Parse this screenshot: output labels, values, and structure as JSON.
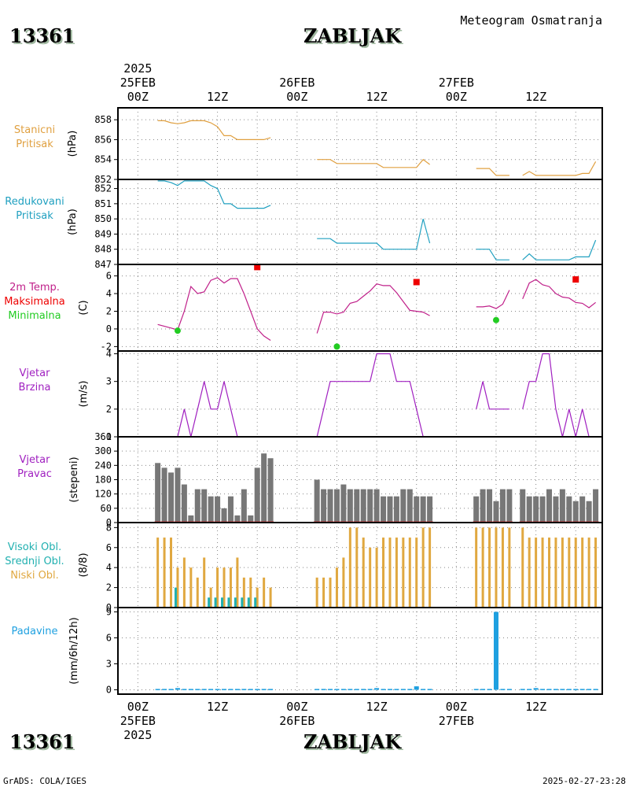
{
  "header": {
    "station_id": "13361",
    "station_name": "ZABLJAK",
    "title": "Meteogram Osmatranja"
  },
  "footer": {
    "credit": "GrADS: COLA/IGES",
    "timestamp": "2025-02-27-23:28"
  },
  "colors": {
    "pressure_station": "#e0a040",
    "pressure_reduced": "#20a0c0",
    "temperature": "#c0208a",
    "tmax": "#ee0000",
    "tmin": "#22cc22",
    "wind": "#a020c0",
    "wind_dir_bar": "#777777",
    "wind_dir_base": "#cc3333",
    "cloud_low": "#e0a840",
    "cloud_mid": "#20b0b0",
    "cloud_high": "#20b0b0",
    "precip": "#1ea0e0"
  },
  "time_axis": {
    "year": "2025",
    "dates": [
      "25FEB",
      "26FEB",
      "27FEB"
    ],
    "hour_labels": [
      "00Z",
      "12Z",
      "00Z",
      "12Z",
      "00Z",
      "12Z"
    ],
    "top_labels": [
      {
        "hour": 0,
        "hour_label": "00Z",
        "date": "25FEB",
        "year": "2025"
      },
      {
        "hour": 12,
        "hour_label": "12Z"
      },
      {
        "hour": 24,
        "hour_label": "00Z",
        "date": "26FEB"
      },
      {
        "hour": 36,
        "hour_label": "12Z"
      },
      {
        "hour": 48,
        "hour_label": "00Z",
        "date": "27FEB"
      },
      {
        "hour": 60,
        "hour_label": "12Z"
      }
    ],
    "bottom_labels": [
      {
        "hour": 0,
        "hour_label": "00Z",
        "date": "25FEB",
        "year": "2025"
      },
      {
        "hour": 12,
        "hour_label": "12Z"
      },
      {
        "hour": 24,
        "hour_label": "00Z",
        "date": "26FEB"
      },
      {
        "hour": 36,
        "hour_label": "12Z"
      },
      {
        "hour": 48,
        "hour_label": "00Z",
        "date": "27FEB"
      },
      {
        "hour": 60,
        "hour_label": "12Z"
      }
    ],
    "range_hours": [
      -3,
      70
    ]
  },
  "chart_data": [
    {
      "id": "station_pressure",
      "type": "line",
      "labels": [
        {
          "text": "Stanicni",
          "color": "#e0a040"
        },
        {
          "text": "Pritisak",
          "color": "#e0a040"
        }
      ],
      "ylabel": "(hPa)",
      "ylim": [
        852,
        859.2
      ],
      "yticks": [
        852,
        854,
        856,
        858
      ],
      "series": [
        {
          "x": [
            3,
            4,
            5,
            6,
            7,
            8,
            9,
            10,
            11,
            12,
            13,
            14,
            15,
            16,
            17,
            18,
            19,
            20
          ],
          "y": [
            857.9,
            857.9,
            857.7,
            857.6,
            857.7,
            857.9,
            857.9,
            857.9,
            857.7,
            857.3,
            856.4,
            856.4,
            856.0,
            856.0,
            856.0,
            856.0,
            856.0,
            856.2
          ]
        },
        {
          "x": [
            27,
            28,
            29,
            30,
            31,
            32,
            33,
            34,
            35,
            36,
            37,
            38,
            39,
            40,
            41,
            42,
            43,
            44
          ],
          "y": [
            854.0,
            854.0,
            854.0,
            853.6,
            853.6,
            853.6,
            853.6,
            853.6,
            853.6,
            853.6,
            853.2,
            853.2,
            853.2,
            853.2,
            853.2,
            853.2,
            854.0,
            853.5
          ]
        },
        {
          "x": [
            51,
            52,
            53,
            54,
            55,
            56
          ],
          "y": [
            853.1,
            853.1,
            853.1,
            852.4,
            852.4,
            852.4
          ]
        },
        {
          "x": [
            58,
            59,
            60,
            61,
            62,
            63,
            64,
            65,
            66,
            67,
            68,
            69
          ],
          "y": [
            852.4,
            852.8,
            852.4,
            852.4,
            852.4,
            852.4,
            852.4,
            852.4,
            852.4,
            852.6,
            852.6,
            853.8
          ]
        }
      ]
    },
    {
      "id": "reduced_pressure",
      "type": "line",
      "labels": [
        {
          "text": "Redukovani",
          "color": "#20a0c0"
        },
        {
          "text": "Pritisak",
          "color": "#20a0c0"
        }
      ],
      "ylabel": "(hPa)",
      "ylim": [
        847,
        852.6
      ],
      "yticks": [
        847,
        848,
        849,
        850,
        851,
        852
      ],
      "series": [
        {
          "x": [
            3,
            4,
            5,
            6,
            7,
            8,
            9,
            10,
            11,
            12,
            13,
            14,
            15,
            16,
            17,
            18,
            19,
            20
          ],
          "y": [
            852.5,
            852.5,
            852.4,
            852.2,
            852.5,
            852.5,
            852.5,
            852.5,
            852.2,
            852.0,
            851.0,
            851.0,
            850.7,
            850.7,
            850.7,
            850.7,
            850.7,
            850.9
          ]
        },
        {
          "x": [
            27,
            28,
            29,
            30,
            31,
            32,
            33,
            34,
            35,
            36,
            37,
            38,
            39,
            40,
            41,
            42,
            43,
            44
          ],
          "y": [
            848.7,
            848.7,
            848.7,
            848.4,
            848.4,
            848.4,
            848.4,
            848.4,
            848.4,
            848.4,
            848.0,
            848.0,
            848.0,
            848.0,
            848.0,
            848.0,
            850.0,
            848.4
          ]
        },
        {
          "x": [
            51,
            52,
            53,
            54,
            55,
            56
          ],
          "y": [
            848.0,
            848.0,
            848.0,
            847.3,
            847.3,
            847.3
          ]
        },
        {
          "x": [
            58,
            59,
            60,
            61,
            62,
            63,
            64,
            65,
            66,
            67,
            68,
            69
          ],
          "y": [
            847.3,
            847.7,
            847.3,
            847.3,
            847.3,
            847.3,
            847.3,
            847.3,
            847.5,
            847.5,
            847.5,
            848.6
          ]
        }
      ]
    },
    {
      "id": "temperature",
      "type": "line",
      "labels": [
        {
          "text": "2m Temp.",
          "color": "#c0208a"
        },
        {
          "text": "Maksimalna",
          "color": "#ee0000"
        },
        {
          "text": "Minimalna",
          "color": "#22cc22"
        }
      ],
      "ylabel": "(C)",
      "ylim": [
        -2.5,
        7.3
      ],
      "yticks": [
        -2,
        0,
        2,
        4,
        6
      ],
      "series": [
        {
          "x": [
            3,
            4,
            5,
            6,
            7,
            8,
            9,
            10,
            11,
            12,
            13,
            14,
            15,
            16,
            17,
            18,
            19,
            20
          ],
          "y": [
            0.5,
            0.3,
            0.1,
            -0.1,
            2.0,
            4.8,
            4.0,
            4.2,
            5.5,
            5.8,
            5.2,
            5.7,
            5.7,
            4.0,
            2.0,
            0.0,
            -0.8,
            -1.3
          ]
        },
        {
          "x": [
            27,
            28,
            29,
            30,
            31,
            32,
            33,
            34,
            35,
            36,
            37,
            38,
            39,
            40,
            41,
            42,
            43,
            44
          ],
          "y": [
            -0.5,
            1.9,
            1.9,
            1.7,
            1.9,
            2.9,
            3.1,
            3.7,
            4.3,
            5.1,
            4.9,
            4.9,
            4.1,
            3.1,
            2.1,
            2.0,
            1.9,
            1.5
          ]
        },
        {
          "x": [
            51,
            52,
            53,
            54,
            55,
            56
          ],
          "y": [
            2.5,
            2.5,
            2.6,
            2.3,
            2.8,
            4.4
          ]
        },
        {
          "x": [
            58,
            59,
            60,
            61,
            62,
            63,
            64,
            65,
            66,
            67,
            68,
            69
          ],
          "y": [
            3.4,
            5.2,
            5.6,
            5.0,
            4.8,
            4.0,
            3.6,
            3.5,
            3.0,
            2.9,
            2.4,
            3.0
          ]
        }
      ],
      "tmax": [
        {
          "x": 18,
          "y": 7.0
        },
        {
          "x": 42,
          "y": 5.3
        },
        {
          "x": 66,
          "y": 5.6
        }
      ],
      "tmin": [
        {
          "x": 6,
          "y": -0.2
        },
        {
          "x": 30,
          "y": -2.0
        },
        {
          "x": 54,
          "y": 1.0
        }
      ]
    },
    {
      "id": "wind_speed",
      "type": "line",
      "labels": [
        {
          "text": "Vjetar",
          "color": "#a020c0"
        },
        {
          "text": "Brzina",
          "color": "#a020c0"
        }
      ],
      "ylabel": "(m/s)",
      "ylim": [
        1,
        4.1
      ],
      "yticks": [
        1,
        2,
        3,
        4
      ],
      "series": [
        {
          "x": [
            3,
            4,
            5,
            6,
            7,
            8,
            9,
            10,
            11,
            12,
            13,
            14,
            15,
            16,
            17,
            18,
            19,
            20
          ],
          "y": [
            1,
            1,
            1,
            1,
            2,
            1,
            2,
            3,
            2,
            2,
            3,
            2,
            1,
            1,
            1,
            1,
            1,
            1
          ]
        },
        {
          "x": [
            27,
            28,
            29,
            30,
            31,
            32,
            33,
            34,
            35,
            36,
            37,
            38,
            39,
            40,
            41,
            42,
            43,
            44
          ],
          "y": [
            1,
            2,
            3,
            3,
            3,
            3,
            3,
            3,
            3,
            4,
            4,
            4,
            3,
            3,
            3,
            2,
            1,
            1
          ]
        },
        {
          "x": [
            51,
            52,
            53,
            54,
            55,
            56
          ],
          "y": [
            2,
            3,
            2,
            2,
            2,
            2
          ]
        },
        {
          "x": [
            58,
            59,
            60,
            61,
            62,
            63,
            64,
            65,
            66,
            67,
            68,
            69
          ],
          "y": [
            2,
            3,
            3,
            4,
            4,
            2,
            1,
            2,
            1,
            2,
            1,
            1
          ]
        }
      ]
    },
    {
      "id": "wind_direction",
      "type": "bar",
      "labels": [
        {
          "text": "Vjetar",
          "color": "#a020c0"
        },
        {
          "text": "Pravac",
          "color": "#a020c0"
        }
      ],
      "ylabel": "(stepeni)",
      "ylim": [
        0,
        360
      ],
      "yticks": [
        0,
        60,
        120,
        180,
        240,
        300,
        360
      ],
      "x": [
        3,
        4,
        5,
        6,
        7,
        8,
        9,
        10,
        11,
        12,
        13,
        14,
        15,
        16,
        17,
        18,
        19,
        20,
        27,
        28,
        29,
        30,
        31,
        32,
        33,
        34,
        35,
        36,
        37,
        38,
        39,
        40,
        41,
        42,
        43,
        44,
        51,
        52,
        53,
        54,
        55,
        56,
        58,
        59,
        60,
        61,
        62,
        63,
        64,
        65,
        66,
        67,
        68,
        69
      ],
      "values": [
        250,
        230,
        210,
        230,
        160,
        30,
        140,
        140,
        110,
        110,
        60,
        110,
        30,
        140,
        30,
        230,
        290,
        270,
        180,
        140,
        140,
        140,
        160,
        140,
        140,
        140,
        140,
        140,
        110,
        110,
        110,
        140,
        140,
        110,
        110,
        110,
        110,
        140,
        140,
        90,
        140,
        140,
        140,
        110,
        110,
        110,
        140,
        110,
        140,
        110,
        90,
        110,
        90,
        140
      ]
    },
    {
      "id": "cloud_cover",
      "type": "bar",
      "labels": [
        {
          "text": "Visoki Obl.",
          "color": "#20b0b0"
        },
        {
          "text": "Srednji Obl.",
          "color": "#20b0b0"
        },
        {
          "text": "Niski Obl.",
          "color": "#e0a840"
        }
      ],
      "ylabel": "(8/8)",
      "ylim": [
        0,
        8.5
      ],
      "yticks": [
        0,
        2,
        4,
        6,
        8
      ],
      "x": [
        3,
        4,
        5,
        6,
        7,
        8,
        9,
        10,
        11,
        12,
        13,
        14,
        15,
        16,
        17,
        18,
        19,
        20,
        27,
        28,
        29,
        30,
        31,
        32,
        33,
        34,
        35,
        36,
        37,
        38,
        39,
        40,
        41,
        42,
        43,
        44,
        51,
        52,
        53,
        54,
        55,
        56,
        58,
        59,
        60,
        61,
        62,
        63,
        64,
        65,
        66,
        67,
        68,
        69
      ],
      "series": [
        {
          "name": "Niski Obl.",
          "values": [
            7,
            7,
            7,
            4,
            5,
            4,
            3,
            5,
            2,
            4,
            4,
            4,
            5,
            3,
            3,
            2,
            3,
            2,
            3,
            3,
            3,
            4,
            5,
            8,
            8,
            7,
            6,
            6,
            7,
            7,
            7,
            7,
            7,
            7,
            8,
            8,
            8,
            8,
            8,
            8,
            8,
            8,
            8,
            7,
            7,
            7,
            7,
            7,
            7,
            7,
            7,
            7,
            7,
            7
          ]
        },
        {
          "name": "Srednji Obl.",
          "values": [
            0,
            0,
            0,
            2,
            0,
            0,
            0,
            0,
            1,
            1,
            1,
            1,
            1,
            1,
            1,
            1,
            0,
            0,
            0,
            0,
            0,
            0,
            0,
            0,
            0,
            0,
            0,
            0,
            0,
            0,
            0,
            0,
            0,
            0,
            0,
            0,
            0,
            0,
            0,
            0,
            0,
            0,
            0,
            0,
            0,
            0,
            0,
            0,
            0,
            0,
            0,
            0,
            0,
            0
          ]
        }
      ]
    },
    {
      "id": "precipitation",
      "type": "bar",
      "labels": [
        {
          "text": "Padavine",
          "color": "#1ea0e0"
        }
      ],
      "ylabel": "(mm/6h/12h)",
      "ylim": [
        -0.5,
        9.5
      ],
      "yticks": [
        0,
        3,
        6,
        9
      ],
      "x": [
        3,
        4,
        5,
        6,
        7,
        8,
        9,
        10,
        11,
        12,
        13,
        14,
        15,
        16,
        17,
        18,
        19,
        20,
        27,
        28,
        29,
        30,
        31,
        32,
        33,
        34,
        35,
        36,
        37,
        38,
        39,
        40,
        41,
        42,
        43,
        44,
        51,
        52,
        53,
        54,
        55,
        56,
        58,
        59,
        60,
        61,
        62,
        63,
        64,
        65,
        66,
        67,
        68,
        69
      ],
      "values": [
        0.1,
        0.1,
        0.1,
        0.2,
        0.1,
        0.1,
        0.1,
        0.1,
        0.1,
        0.1,
        0.1,
        0.1,
        0.1,
        0.1,
        0.1,
        0.1,
        0.1,
        0.1,
        0.1,
        0.1,
        0.1,
        0.1,
        0.1,
        0.1,
        0.1,
        0.1,
        0.1,
        0.2,
        0.1,
        0.1,
        0.1,
        0.1,
        0.1,
        0.4,
        0.1,
        0.1,
        0.1,
        0.1,
        0.1,
        9.0,
        0.1,
        0.1,
        0.1,
        0.1,
        0.2,
        0.1,
        0.1,
        0.1,
        0.1,
        0.1,
        0.1,
        0.1,
        0.1,
        0.1
      ]
    }
  ]
}
